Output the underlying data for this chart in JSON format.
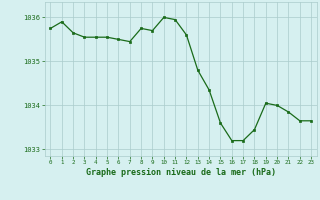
{
  "x": [
    0,
    1,
    2,
    3,
    4,
    5,
    6,
    7,
    8,
    9,
    10,
    11,
    12,
    13,
    14,
    15,
    16,
    17,
    18,
    19,
    20,
    21,
    22,
    23
  ],
  "y": [
    1035.75,
    1035.9,
    1035.65,
    1035.55,
    1035.55,
    1035.55,
    1035.5,
    1035.45,
    1035.75,
    1035.7,
    1036.0,
    1035.95,
    1035.6,
    1034.8,
    1034.35,
    1033.6,
    1033.2,
    1033.2,
    1033.45,
    1034.05,
    1034.0,
    1033.85,
    1033.65,
    1033.65
  ],
  "line_color": "#1a6b1a",
  "marker_color": "#1a6b1a",
  "bg_color": "#d6f0f0",
  "grid_color": "#aacccc",
  "axis_label_color": "#1a6b1a",
  "tick_color": "#1a6b1a",
  "xlabel": "Graphe pression niveau de la mer (hPa)",
  "ylim": [
    1032.85,
    1036.35
  ],
  "yticks": [
    1033,
    1034,
    1035,
    1036
  ],
  "xticks": [
    0,
    1,
    2,
    3,
    4,
    5,
    6,
    7,
    8,
    9,
    10,
    11,
    12,
    13,
    14,
    15,
    16,
    17,
    18,
    19,
    20,
    21,
    22,
    23
  ]
}
